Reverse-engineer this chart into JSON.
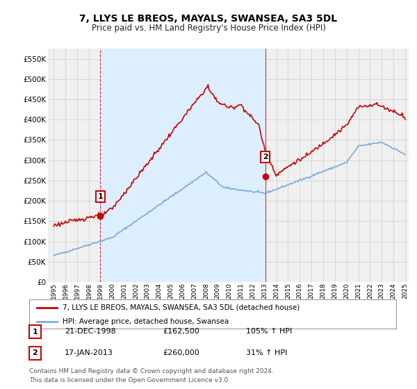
{
  "title": "7, LLYS LE BREOS, MAYALS, SWANSEA, SA3 5DL",
  "subtitle": "Price paid vs. HM Land Registry's House Price Index (HPI)",
  "legend_line1": "7, LLYS LE BREOS, MAYALS, SWANSEA, SA3 5DL (detached house)",
  "legend_line2": "HPI: Average price, detached house, Swansea",
  "sale1_year": 1998.97,
  "sale1_value": 162500,
  "sale2_year": 2013.05,
  "sale2_value": 260000,
  "property_color": "#cc0000",
  "hpi_color": "#7aaadd",
  "shaded_color": "#ddeeff",
  "grid_color": "#cccccc",
  "background_color": "#ffffff",
  "plot_bg_color": "#f0f0f0",
  "ylim_max": 575000,
  "ylim_min": 0,
  "xlim_min": 1994.5,
  "xlim_max": 2025.3,
  "footnote_line1": "Contains HM Land Registry data © Crown copyright and database right 2024.",
  "footnote_line2": "This data is licensed under the Open Government Licence v3.0.",
  "row1_date": "21-DEC-1998",
  "row1_price": "£162,500",
  "row1_hpi": "105% ↑ HPI",
  "row2_date": "17-JAN-2013",
  "row2_price": "£260,000",
  "row2_hpi": "31% ↑ HPI"
}
